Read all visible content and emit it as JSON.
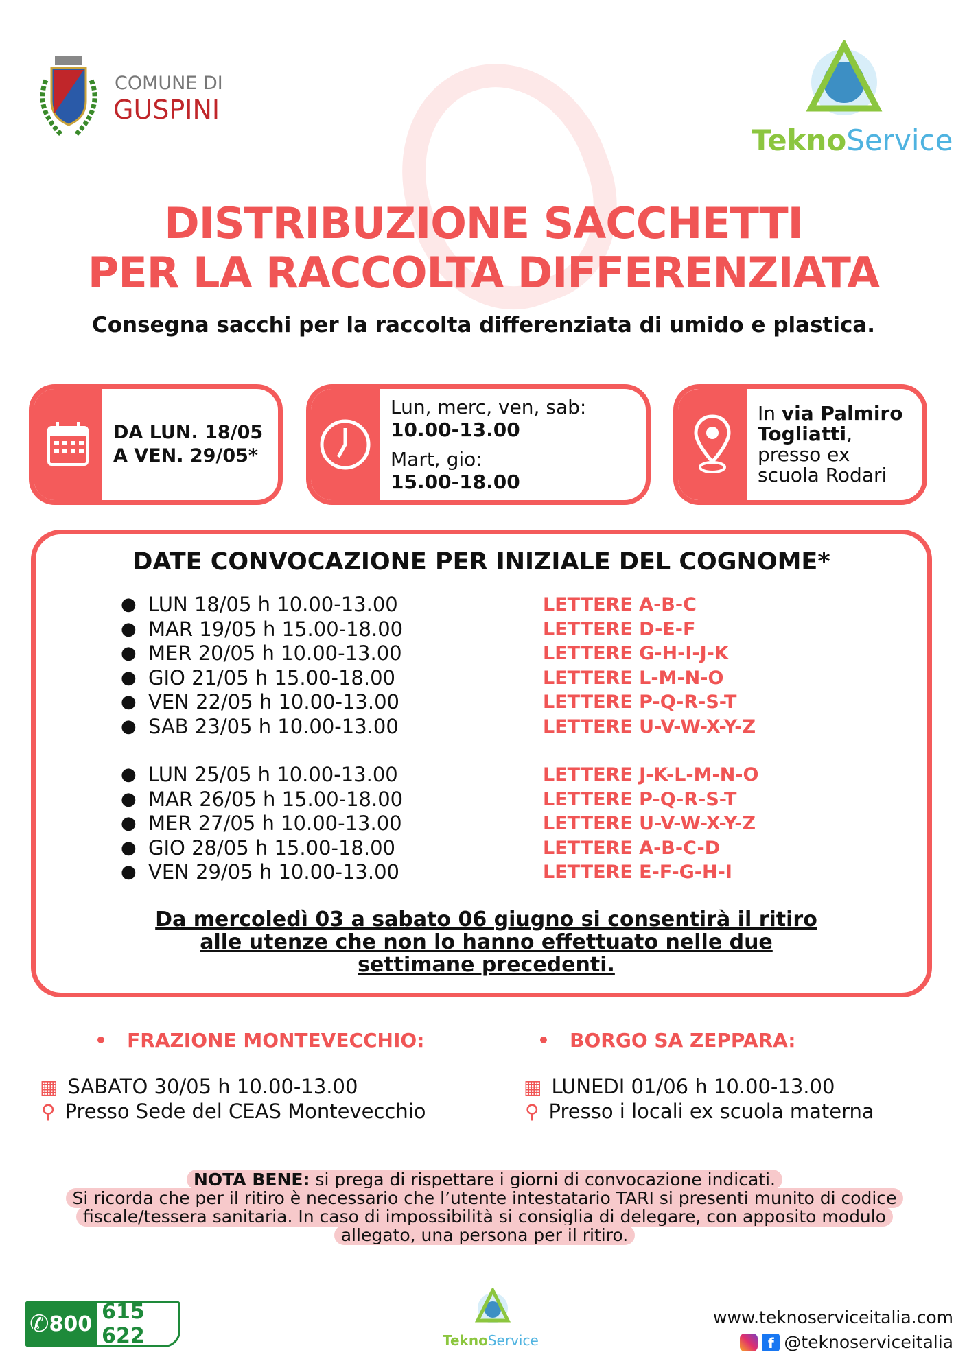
{
  "header": {
    "comune_line1": "COMUNE DI",
    "comune_line2": "GUSPINI",
    "brand_a": "Tekno",
    "brand_b": "Service"
  },
  "title": {
    "line1": "DISTRIBUZIONE SACCHETTI",
    "line2": "PER LA RACCOLTA DIFFERENZIATA"
  },
  "subtitle": "Consegna sacchi per la raccolta differenziata di umido e plastica.",
  "cards": {
    "period": {
      "line1": "DA LUN. 18/05",
      "line2": "A VEN. 29/05*"
    },
    "hours": {
      "days1": "Lun, merc, ven, sab:",
      "time1": "10.00-13.00",
      "days2": "Mart, gio:",
      "time2": "15.00-18.00"
    },
    "place": {
      "pre": "In ",
      "bold1": "via Palmiro",
      "bold2": "Togliatti",
      "post1": ",",
      "line3": "presso ex",
      "line4": "scuola Rodari"
    }
  },
  "schedule": {
    "heading": "DATE CONVOCAZIONE PER INIZIALE DEL COGNOME*",
    "week1": [
      {
        "date": "LUN 18/05 h 10.00-13.00",
        "letters": "LETTERE A-B-C"
      },
      {
        "date": "MAR 19/05 h 15.00-18.00",
        "letters": "LETTERE D-E-F"
      },
      {
        "date": "MER 20/05 h 10.00-13.00",
        "letters": "LETTERE G-H-I-J-K"
      },
      {
        "date": "GIO 21/05 h 15.00-18.00",
        "letters": "LETTERE L-M-N-O"
      },
      {
        "date": "VEN 22/05 h 10.00-13.00",
        "letters": "LETTERE P-Q-R-S-T"
      },
      {
        "date": "SAB 23/05 h 10.00-13.00",
        "letters": "LETTERE U-V-W-X-Y-Z"
      }
    ],
    "week2": [
      {
        "date": "LUN 25/05 h 10.00-13.00",
        "letters": "LETTERE J-K-L-M-N-O"
      },
      {
        "date": "MAR 26/05 h 15.00-18.00",
        "letters": "LETTERE P-Q-R-S-T"
      },
      {
        "date": "MER 27/05 h 10.00-13.00",
        "letters": "LETTERE U-V-W-X-Y-Z"
      },
      {
        "date": "GIO 28/05 h 15.00-18.00",
        "letters": "LETTERE A-B-C-D"
      },
      {
        "date": "VEN 29/05 h 10.00-13.00",
        "letters": "LETTERE E-F-G-H-I"
      }
    ],
    "note_line1": "Da mercoledì 03 a sabato 06 giugno si consentirà il ritiro",
    "note_line2": "alle utenze che non lo hanno effettuato nelle due",
    "note_line3": "settimane precedenti."
  },
  "frazioni": [
    {
      "name": "FRAZIONE MONTEVECCHIO:",
      "date": "SABATO 30/05 h 10.00-13.00",
      "place": "Presso Sede del CEAS Montevecchio"
    },
    {
      "name": "BORGO SA ZEPPARA:",
      "date": "LUNEDI 01/06 h 10.00-13.00",
      "place": "Presso i locali ex scuola materna"
    }
  ],
  "nota": {
    "label": "NOTA BENE:",
    "line1": " si prega di rispettare i giorni di convocazione indicati.",
    "line2": "Si ricorda che per il ritiro è necessario che l’utente intestatario TARI si presenti munito di codice",
    "line3": "fiscale/tessera sanitaria. In caso di impossibilità si consiglia di delegare, con apposito modulo",
    "line4": "allegato, una persona per il ritiro."
  },
  "footer": {
    "phone_a": "800",
    "phone_b": "615 622",
    "website": "www.teknoserviceitalia.com",
    "social": "@teknoserviceitalia",
    "brand_a": "Tekno",
    "brand_b": "Service"
  },
  "colors": {
    "accent": "#f45b5b",
    "green": "#1e8a3a",
    "lime": "#8cc63f",
    "sky": "#4fb3e0",
    "note_bg": "#f7c9cb"
  }
}
